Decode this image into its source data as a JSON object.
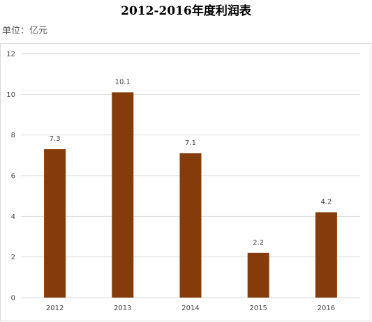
{
  "title": "2012-2016年度利润表",
  "unit_label": "单位：亿元",
  "colors": {
    "bar": "#843c0c",
    "grid": "#d9d9d9",
    "text": "#404040"
  },
  "chart_data": {
    "type": "bar",
    "categories": [
      "2012",
      "2013",
      "2014",
      "2015",
      "2016"
    ],
    "values": [
      7.3,
      10.1,
      7.1,
      2.2,
      4.2
    ],
    "data_labels": [
      "7.3",
      "10.1",
      "7.1",
      "2.2",
      "4.2"
    ],
    "title": "2012-2016年度利润表",
    "xlabel": "",
    "ylabel": "",
    "ylim": [
      0,
      12
    ],
    "yticks": [
      0,
      2,
      4,
      6,
      8,
      10,
      12
    ],
    "grid": true,
    "legend": "none"
  }
}
